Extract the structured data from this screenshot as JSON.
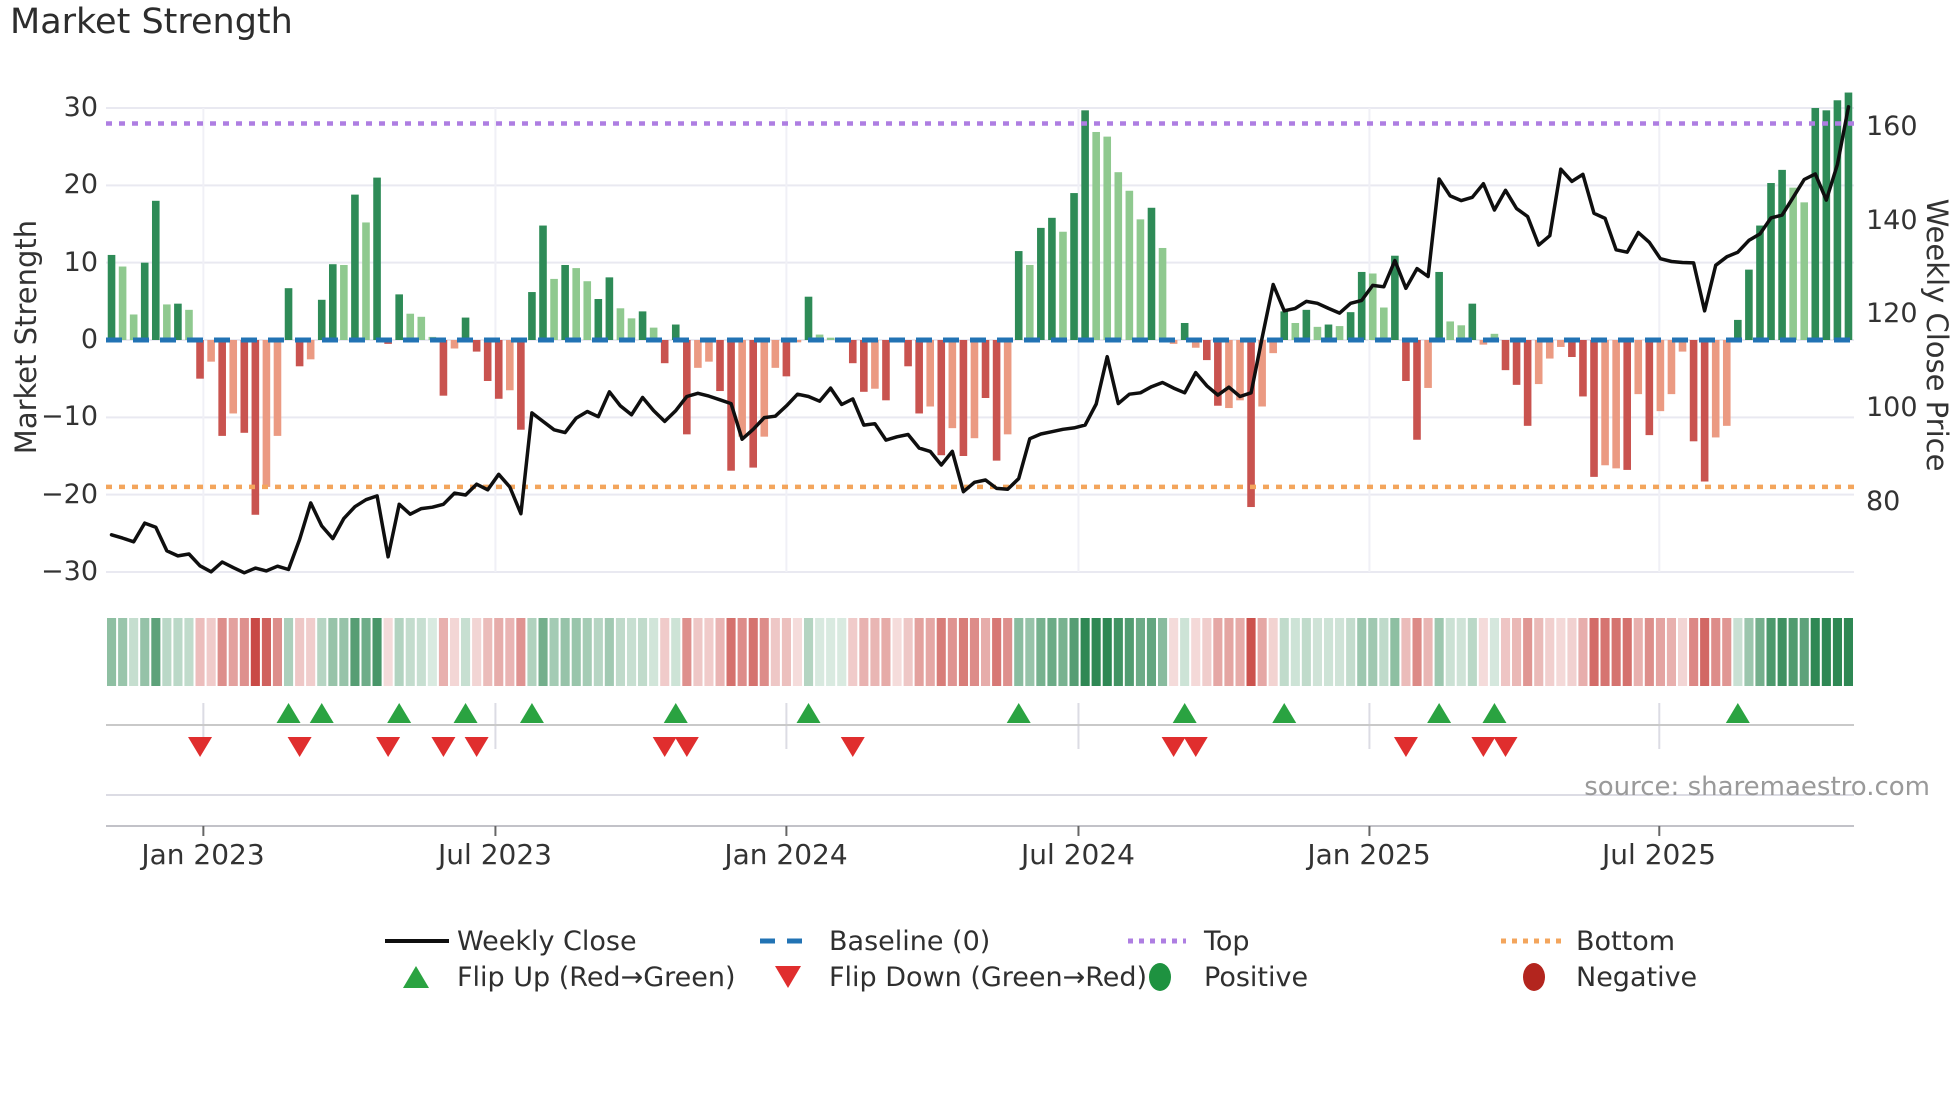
{
  "title": "Market Strength",
  "source": "source: sharemaestro.com",
  "legend": {
    "weekly_close": "Weekly Close",
    "baseline": "Baseline (0)",
    "top": "Top",
    "bottom": "Bottom",
    "flip_up": "Flip Up (Red→Green)",
    "flip_down": "Flip Down (Green→Red)",
    "positive": "Positive",
    "negative": "Negative"
  },
  "colors": {
    "bar_green_dark": "#2e8b57",
    "bar_green_light": "#8fc98f",
    "bar_red_dark": "#c9534f",
    "bar_red_light": "#eb9a82",
    "close_line": "#0f0f0f",
    "baseline": "#2273b4",
    "top_line": "#ae7ee2",
    "bottom_line": "#f3a55c",
    "flip_up": "#2aa341",
    "flip_down": "#e02e2e",
    "positive": "#1e9240",
    "negative": "#b3251e",
    "grid": "#e9e9f1",
    "axis_line": "#c2c2c8",
    "source_text": "#9a9a9a"
  },
  "chart_data": {
    "type": "combo: weekly strength bars + weekly close line + heatmap strip + flip markers",
    "weeks": 158,
    "baseline": 0,
    "top_threshold": 28,
    "bottom_threshold": -19,
    "left_axis": {
      "label": "Market Strength",
      "ticks": [
        30,
        20,
        10,
        0,
        -10,
        -20,
        -30
      ],
      "tick_labels": [
        "30",
        "20",
        "10",
        "0",
        "−10",
        "−20",
        "−30"
      ],
      "range": [
        -33,
        33
      ]
    },
    "right_axis": {
      "label": "Weekly Close Price",
      "ticks": [
        160,
        140,
        120,
        100,
        80
      ],
      "tick_labels": [
        "160",
        "140",
        "120",
        "100",
        "80"
      ]
    },
    "x_ticks": [
      {
        "label": "Jan 2023",
        "week": 9.3
      },
      {
        "label": "Jul 2023",
        "week": 35.7
      },
      {
        "label": "Jan 2024",
        "week": 62.0
      },
      {
        "label": "Jul 2024",
        "week": 88.4
      },
      {
        "label": "Jan 2025",
        "week": 114.7
      },
      {
        "label": "Jul 2025",
        "week": 140.9
      }
    ],
    "market_strength": [
      11,
      9.5,
      3.3,
      10,
      18,
      4.6,
      4.7,
      3.9,
      -5,
      -2.8,
      -12.4,
      -9.5,
      -12,
      -22.6,
      -19,
      -12.4,
      6.7,
      -3.4,
      -2.5,
      5.2,
      9.8,
      9.7,
      18.8,
      15.2,
      21,
      -0.5,
      5.9,
      3.4,
      3,
      0.4,
      -7.2,
      -1.1,
      2.9,
      -1.5,
      -5.3,
      -7.6,
      -6.5,
      -11.6,
      6.2,
      14.8,
      7.9,
      9.7,
      9.3,
      7.6,
      5.3,
      8.1,
      4.1,
      2.8,
      3.7,
      1.6,
      -3,
      2,
      -12.2,
      -3.6,
      -2.8,
      -6.6,
      -16.9,
      -12.5,
      -16.5,
      -12.5,
      -3.6,
      -4.7,
      -0.3,
      5.6,
      0.7,
      0.3,
      0.2,
      -3,
      -6.7,
      -6.3,
      -7.8,
      -0.3,
      -3.4,
      -9.5,
      -8.6,
      -14.9,
      -11.4,
      -15,
      -12.7,
      -7.5,
      -15.6,
      -12.2,
      11.5,
      9.7,
      14.5,
      15.8,
      14,
      19,
      29.7,
      26.9,
      26.3,
      21.7,
      19.3,
      15.6,
      17.1,
      11.9,
      -0.5,
      2.2,
      -1,
      -2.6,
      -8.5,
      -8.8,
      -7.8,
      -21.6,
      -8.6,
      -1.7,
      3.7,
      2.2,
      3.9,
      1.7,
      2,
      1.8,
      3.6,
      8.8,
      8.6,
      4.2,
      10.9,
      -5.3,
      -12.9,
      -6.2,
      8.8,
      2.4,
      1.9,
      4.7,
      -0.6,
      0.8,
      -3.9,
      -5.8,
      -11.1,
      -5.7,
      -2.4,
      -0.9,
      -2.2,
      -7.3,
      -17.7,
      -16.2,
      -16.6,
      -16.8,
      -7,
      -12.3,
      -9.2,
      -7,
      -1.5,
      -13.1,
      -18.3,
      -12.6,
      -11.1,
      2.6,
      9.1,
      14.8,
      20.3,
      22,
      19.7,
      17.8,
      30,
      29.7,
      31,
      32
    ],
    "bar_shade": [
      "d",
      "l",
      "l",
      "d",
      "d",
      "l",
      "d",
      "l",
      "d",
      "l",
      "d",
      "l",
      "d",
      "d",
      "l",
      "l",
      "d",
      "d",
      "l",
      "d",
      "d",
      "l",
      "d",
      "l",
      "d",
      "d",
      "d",
      "l",
      "l",
      "l",
      "d",
      "l",
      "d",
      "d",
      "d",
      "d",
      "l",
      "d",
      "d",
      "d",
      "l",
      "d",
      "l",
      "l",
      "d",
      "d",
      "l",
      "l",
      "d",
      "l",
      "d",
      "d",
      "d",
      "l",
      "l",
      "d",
      "d",
      "l",
      "d",
      "l",
      "l",
      "d",
      "l",
      "d",
      "l",
      "l",
      "l",
      "d",
      "d",
      "l",
      "d",
      "l",
      "d",
      "d",
      "l",
      "d",
      "l",
      "d",
      "l",
      "d",
      "d",
      "l",
      "d",
      "l",
      "d",
      "d",
      "l",
      "d",
      "d",
      "l",
      "l",
      "l",
      "l",
      "l",
      "d",
      "l",
      "l",
      "d",
      "l",
      "d",
      "d",
      "l",
      "l",
      "d",
      "l",
      "l",
      "d",
      "l",
      "d",
      "l",
      "d",
      "l",
      "d",
      "d",
      "l",
      "l",
      "d",
      "d",
      "d",
      "l",
      "d",
      "l",
      "l",
      "d",
      "l",
      "l",
      "d",
      "d",
      "d",
      "l",
      "l",
      "l",
      "d",
      "d",
      "d",
      "l",
      "l",
      "d",
      "l",
      "d",
      "l",
      "l",
      "l",
      "d",
      "d",
      "l",
      "l",
      "d",
      "d",
      "d",
      "d",
      "d",
      "l",
      "l",
      "d",
      "d",
      "d",
      "d"
    ],
    "weekly_close": [
      73,
      72.3,
      71.5,
      75.5,
      74.6,
      69.6,
      68.5,
      68.9,
      66.4,
      65.1,
      67.2,
      66,
      64.9,
      65.9,
      65.3,
      66.3,
      65.6,
      72,
      79.8,
      74.9,
      72.2,
      76.5,
      79,
      80.5,
      81.3,
      68.3,
      79.5,
      77.4,
      78.6,
      78.9,
      79.5,
      81.9,
      81.5,
      83.8,
      82.6,
      85.9,
      83.2,
      77.5,
      99,
      97.2,
      95.4,
      94.8,
      97.9,
      99.3,
      98.2,
      103.5,
      100.5,
      98.6,
      102.3,
      99.5,
      97.2,
      99.5,
      102.5,
      103.2,
      102.6,
      101.8,
      101,
      93.4,
      95.5,
      98,
      98.3,
      100.5,
      103,
      102.5,
      101.5,
      104.3,
      100.8,
      102,
      96.4,
      96.7,
      93.2,
      93.9,
      94.4,
      91.5,
      90.8,
      87.9,
      90.8,
      82.2,
      84.2,
      84.7,
      82.9,
      82.7,
      85,
      93.5,
      94.5,
      95,
      95.5,
      95.8,
      96.4,
      100.9,
      111,
      101,
      103,
      103.3,
      104.6,
      105.5,
      104.3,
      103.3,
      107.6,
      104.8,
      102.8,
      104.5,
      102.5,
      103.3,
      115,
      126.4,
      120.8,
      121.3,
      122.8,
      122.4,
      121.3,
      120.3,
      122.4,
      123,
      126.2,
      125.9,
      131.5,
      125.6,
      129.8,
      128.1,
      148.9,
      145.3,
      144.3,
      145,
      147.9,
      142.3,
      146.5,
      142.6,
      140.9,
      134.8,
      136.8,
      151,
      148.4,
      149.9,
      141.6,
      140.5,
      133.8,
      133.3,
      137.5,
      135.4,
      131.9,
      131.3,
      131.1,
      131,
      120.8,
      130.5,
      132.3,
      133.3,
      135.8,
      137.2,
      140.6,
      141.2,
      145,
      148.8,
      150,
      144.4,
      152,
      164.3
    ],
    "flip_up_weeks": [
      17,
      20,
      27,
      33,
      39,
      52,
      64,
      83,
      98,
      107,
      121,
      126,
      148
    ],
    "flip_down_weeks": [
      9,
      18,
      26,
      31,
      34,
      51,
      53,
      68,
      97,
      99,
      118,
      125,
      127
    ]
  }
}
